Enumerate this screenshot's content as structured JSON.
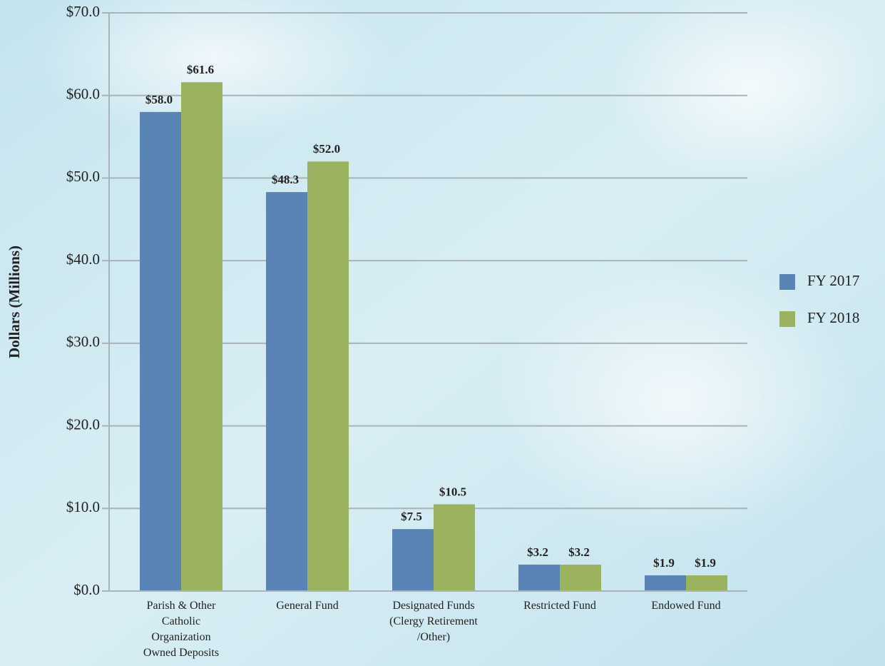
{
  "chart_data": {
    "type": "bar",
    "y_label": "Dollars (Millions)",
    "categories": [
      "Parish & Other\nCatholic\nOrganization\nOwned Deposits",
      "General Fund",
      "Designated Funds\n(Clergy Retirement\n/Other)",
      "Restricted Fund",
      "Endowed Fund"
    ],
    "series": [
      {
        "name": "FY 2017",
        "color": "#5a84b5",
        "values": [
          58.0,
          48.3,
          7.5,
          3.2,
          1.9
        ],
        "value_labels": [
          "$58.0",
          "$48.3",
          "$7.5",
          "$3.2",
          "$1.9"
        ]
      },
      {
        "name": "FY 2018",
        "color": "#9bb25e",
        "values": [
          61.6,
          52.0,
          10.5,
          3.2,
          1.9
        ],
        "value_labels": [
          "$61.6",
          "$52.0",
          "$10.5",
          "$3.2",
          "$1.9"
        ]
      }
    ],
    "ylim": [
      0,
      70
    ],
    "yticks": [
      {
        "value": 0,
        "label": "$0.0"
      },
      {
        "value": 10,
        "label": "$10.0"
      },
      {
        "value": 20,
        "label": "$20.0"
      },
      {
        "value": 30,
        "label": "$30.0"
      },
      {
        "value": 40,
        "label": "$40.0"
      },
      {
        "value": 50,
        "label": "$50.0"
      },
      {
        "value": 60,
        "label": "$60.0"
      },
      {
        "value": 70,
        "label": "$70.0"
      }
    ],
    "grid": true,
    "legend": "right"
  }
}
